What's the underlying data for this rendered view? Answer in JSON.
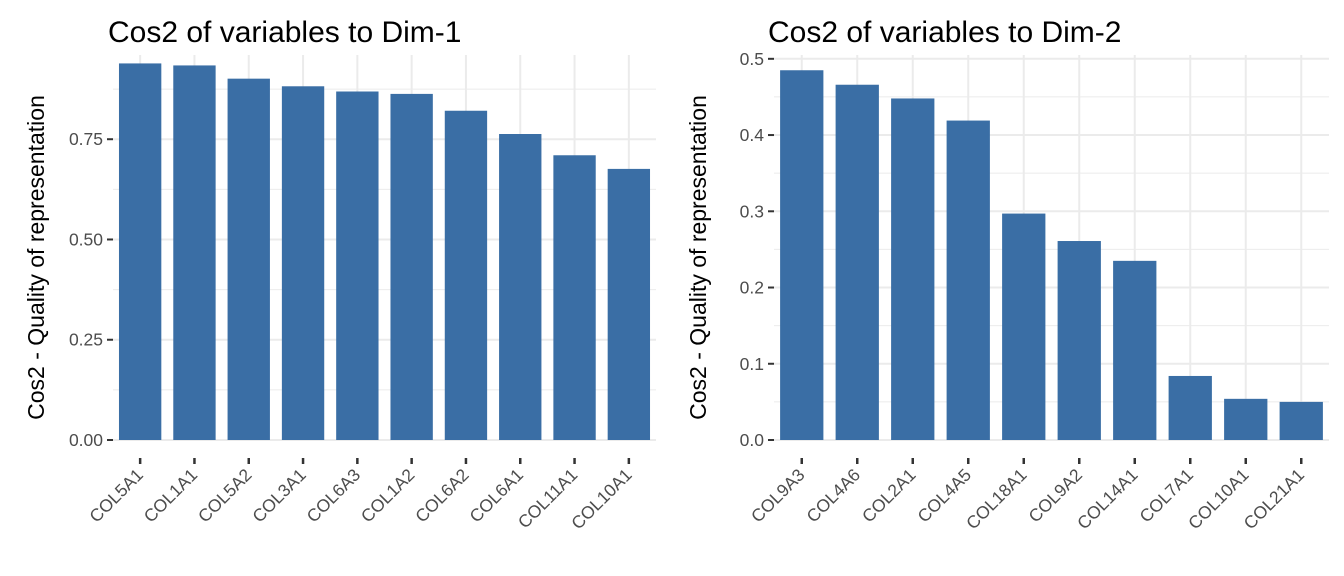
{
  "chart_data": [
    {
      "type": "bar",
      "title": "Cos2 of variables to Dim-1",
      "ylabel": "Cos2 - Quality of representation",
      "xlabel": "",
      "categories": [
        "COL5A1",
        "COL1A1",
        "COL5A2",
        "COL3A1",
        "COL6A3",
        "COL1A2",
        "COL6A2",
        "COL6A1",
        "COL11A1",
        "COL10A1"
      ],
      "values": [
        0.939,
        0.934,
        0.901,
        0.882,
        0.869,
        0.863,
        0.821,
        0.763,
        0.71,
        0.676
      ],
      "yticks": [
        "0.00",
        "0.25",
        "0.50",
        "0.75"
      ],
      "ylim": [
        0,
        0.96
      ],
      "bar_color": "#3a6ea5",
      "grid": true
    },
    {
      "type": "bar",
      "title": "Cos2 of variables to Dim-2",
      "ylabel": "Cos2 - Quality of representation",
      "xlabel": "",
      "categories": [
        "COL9A3",
        "COL4A6",
        "COL2A1",
        "COL4A5",
        "COL18A1",
        "COL9A2",
        "COL14A1",
        "COL7A1",
        "COL10A1",
        "COL21A1"
      ],
      "values": [
        0.485,
        0.466,
        0.448,
        0.419,
        0.297,
        0.261,
        0.235,
        0.084,
        0.054,
        0.05
      ],
      "yticks": [
        "0.0",
        "0.1",
        "0.2",
        "0.3",
        "0.4",
        "0.5"
      ],
      "ylim": [
        0,
        0.505
      ],
      "bar_color": "#3a6ea5",
      "grid": true
    }
  ]
}
